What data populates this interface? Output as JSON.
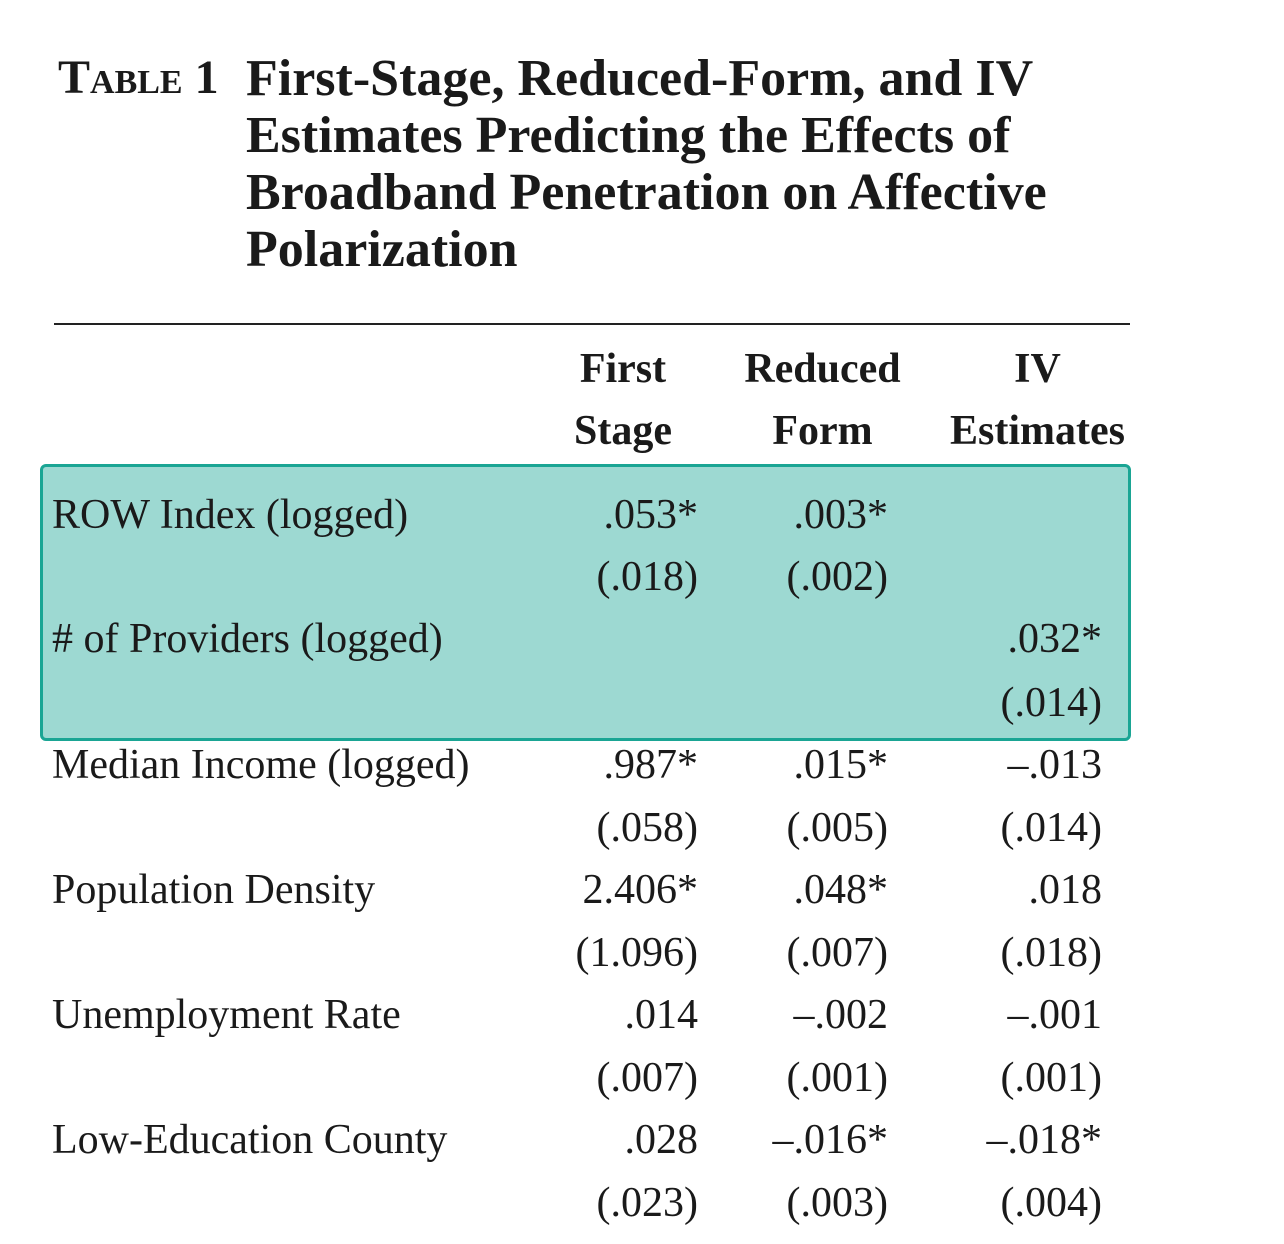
{
  "table": {
    "label_word": "Table",
    "label_number": "1",
    "title_lines": [
      "First-Stage, Reduced-Form, and IV",
      "Estimates Predicting the Effects of",
      "Broadband Penetration on Affective",
      "Polarization"
    ],
    "columns": [
      {
        "line1": "First",
        "line2": "Stage"
      },
      {
        "line1": "Reduced",
        "line2": "Form"
      },
      {
        "line1": "IV",
        "line2": "Estimates"
      }
    ],
    "rows": [
      {
        "label": "ROW Index (logged)",
        "coef": [
          ".053*",
          ".003*",
          ""
        ],
        "se": [
          "(.018)",
          "(.002)",
          ""
        ]
      },
      {
        "label": "# of Providers (logged)",
        "coef": [
          "",
          "",
          ".032*"
        ],
        "se": [
          "",
          "",
          "(.014)"
        ]
      },
      {
        "label": "Median Income (logged)",
        "coef": [
          ".987*",
          ".015*",
          "–.013"
        ],
        "se": [
          "(.058)",
          "(.005)",
          "(.014)"
        ]
      },
      {
        "label": "Population Density",
        "coef": [
          "2.406*",
          ".048*",
          ".018"
        ],
        "se": [
          "(1.096)",
          "(.007)",
          "(.018)"
        ]
      },
      {
        "label": "Unemployment Rate",
        "coef": [
          ".014",
          "–.002",
          "–.001"
        ],
        "se": [
          "(.007)",
          "(.001)",
          "(.001)"
        ]
      },
      {
        "label": "Low-Education County",
        "coef": [
          ".028",
          "–.016*",
          "–.018*"
        ],
        "se": [
          "(.023)",
          "(.003)",
          "(.004)"
        ]
      }
    ]
  },
  "colors": {
    "highlight_fill": "#9dd9d2",
    "highlight_border": "#1aa594",
    "text": "#1a1a1a"
  }
}
